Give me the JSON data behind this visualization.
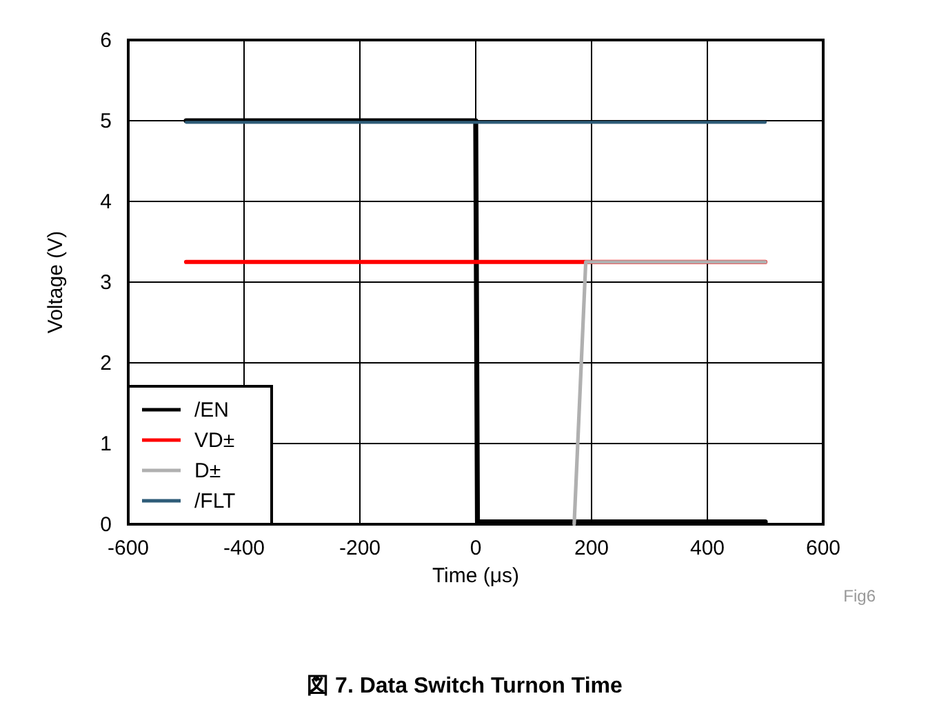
{
  "chart_data": {
    "type": "line",
    "xlabel": "Time (μs)",
    "ylabel": "Voltage (V)",
    "xlim": [
      -600,
      600
    ],
    "xticks": [
      -600,
      -400,
      -200,
      0,
      200,
      400,
      600
    ],
    "ylim": [
      0,
      6
    ],
    "yticks": [
      0,
      1,
      2,
      3,
      4,
      5,
      6
    ],
    "grid": true,
    "legend": "bottom left",
    "line_style": "solid",
    "series": [
      {
        "name": "/EN",
        "color": "#000000",
        "x": [
          -500,
          0,
          3,
          500
        ],
        "values": [
          5.0,
          5.0,
          0.03,
          0.03
        ]
      },
      {
        "name": "VD±",
        "color": "#ff0000",
        "x": [
          -500,
          500
        ],
        "values": [
          3.25,
          3.25
        ]
      },
      {
        "name": "D±",
        "color": "#b0b0b0",
        "x": [
          170,
          190,
          500
        ],
        "values": [
          0,
          3.25,
          3.25
        ]
      },
      {
        "name": "/FLT",
        "color": "#2e5c78",
        "x": [
          -500,
          500
        ],
        "values": [
          4.98,
          4.98
        ]
      }
    ],
    "annotations": [
      "Fig6",
      "図 7. Data Switch Turnon Time"
    ]
  }
}
